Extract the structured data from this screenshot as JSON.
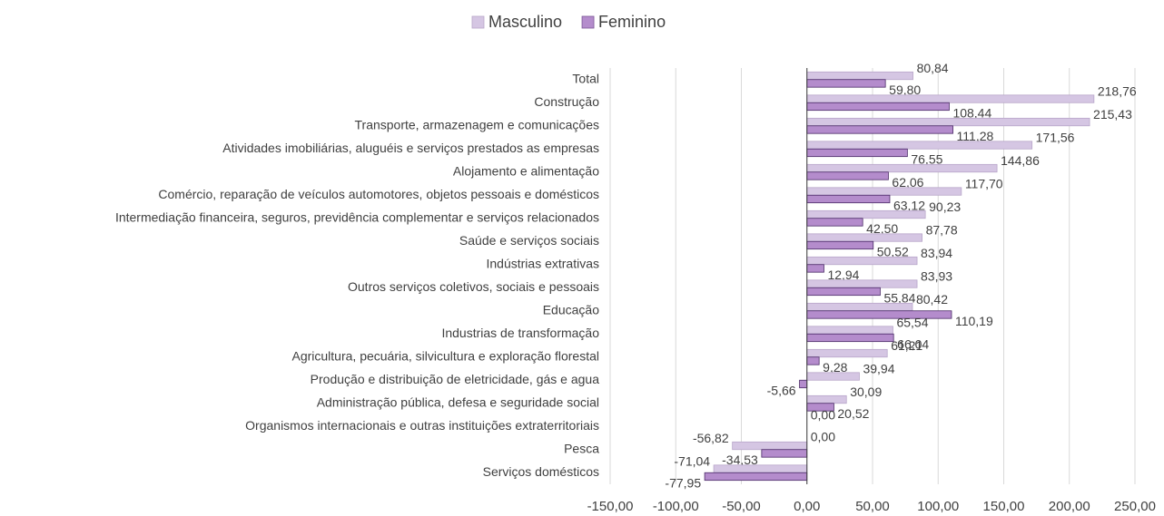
{
  "chart_data": {
    "type": "bar",
    "orientation": "horizontal",
    "legend": "top",
    "grid": true,
    "categories": [
      "Total",
      "Construção",
      "Transporte, armazenagem e comunicações",
      "Atividades imobiliárias, aluguéis e serviços prestados as empresas",
      "Alojamento e alimentação",
      "Comércio, reparação de veículos automotores, objetos pessoais e domésticos",
      "Intermediação financeira, seguros, previdência complementar e serviços relacionados",
      "Saúde e serviços sociais",
      "Indústrias extrativas",
      "Outros serviços coletivos, sociais e pessoais",
      "Educação",
      "Industrias de transformação",
      "Agricultura, pecuária, silvicultura e exploração florestal",
      "Produção e distribuição de eletricidade, gás e agua",
      "Administração pública, defesa e seguridade social",
      "Organismos internacionais e outras instituições extraterritoriais",
      "Pesca",
      "Serviços domésticos"
    ],
    "series": [
      {
        "name": "Masculino",
        "color": "#d5c6e3",
        "values": [
          80.84,
          218.76,
          215.43,
          171.56,
          144.86,
          117.7,
          90.23,
          87.78,
          83.94,
          83.93,
          80.42,
          65.54,
          61.21,
          39.94,
          30.09,
          0.0,
          -56.82,
          -71.04
        ],
        "value_labels": [
          "80,84",
          "218,76",
          "215,43",
          "171,56",
          "144,86",
          "117,70",
          "90,23",
          "87,78",
          "83,94",
          "83,93",
          "80,42",
          "65,54",
          "61,21",
          "39,94",
          "30,09",
          "0,00",
          "-56,82",
          "-71,04"
        ]
      },
      {
        "name": "Feminino",
        "color": "#b48ccc",
        "values": [
          59.8,
          108.44,
          111.28,
          76.55,
          62.06,
          63.12,
          42.5,
          50.52,
          12.94,
          55.84,
          110.19,
          66.04,
          9.28,
          -5.66,
          20.52,
          0.0,
          -34.53,
          -77.95
        ],
        "value_labels": [
          "59,80",
          "108,44",
          "111,28",
          "76,55",
          "62,06",
          "63,12",
          "42,50",
          "50,52",
          "12,94",
          "55,84",
          "110,19",
          "66,04",
          "9,28",
          "-5,66",
          "20,52",
          "0,00",
          "-34,53",
          "-77,95"
        ]
      }
    ],
    "xlim": [
      -150,
      250
    ],
    "xticks": [
      {
        "value": -150,
        "label": "-150,00"
      },
      {
        "value": -100,
        "label": "-100,00"
      },
      {
        "value": -50,
        "label": "-50,00"
      },
      {
        "value": 0,
        "label": "0,00"
      },
      {
        "value": 50,
        "label": "50,00"
      },
      {
        "value": 100,
        "label": "100,00"
      },
      {
        "value": 150,
        "label": "150,00"
      },
      {
        "value": 200,
        "label": "200,00"
      },
      {
        "value": 250,
        "label": "250,00"
      }
    ]
  }
}
